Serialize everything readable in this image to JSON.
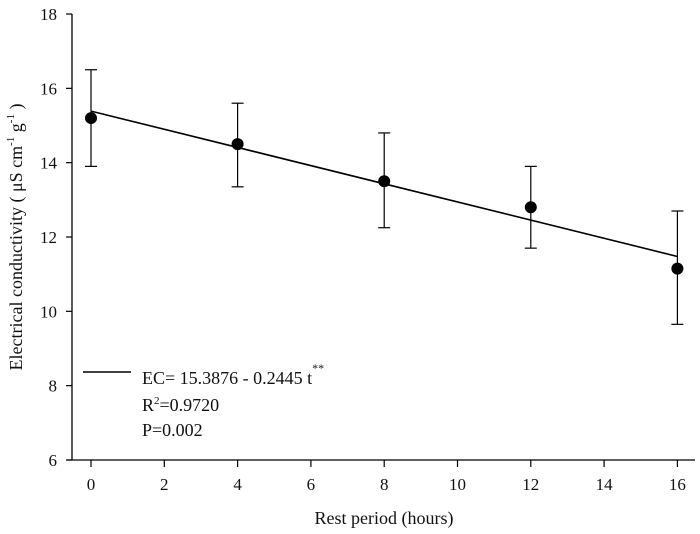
{
  "chart_data": {
    "type": "scatter",
    "xlabel": "Rest period (hours)",
    "ylabel_main": "Electrical conductivity ( μS cm",
    "ylabel_sup1": "-1",
    "ylabel_mid": " g",
    "ylabel_sup2": "-1",
    "ylabel_end": " )",
    "xlim": [
      -0.5,
      16.5
    ],
    "ylim": [
      6,
      18
    ],
    "xticks": [
      0,
      2,
      4,
      6,
      8,
      10,
      12,
      14,
      16
    ],
    "yticks": [
      6,
      8,
      10,
      12,
      14,
      16,
      18
    ],
    "grid": false,
    "x": [
      0,
      4,
      8,
      12,
      16
    ],
    "y": [
      15.2,
      14.5,
      13.5,
      12.8,
      11.15
    ],
    "error_low": [
      13.9,
      13.35,
      12.25,
      11.7,
      9.65
    ],
    "error_high": [
      16.5,
      15.6,
      14.8,
      13.9,
      12.7
    ],
    "regression": {
      "intercept": 15.3876,
      "slope": -0.2445,
      "x_range": [
        0,
        16
      ]
    },
    "legend": {
      "placement": "bottom-left",
      "equation": "EC= 15.3876 - 0.2445 t",
      "equation_sup": "**",
      "r2_prefix": "R",
      "r2_sup": "2",
      "r2_value": "=0.9720",
      "p_value": "P=0.002"
    },
    "colors": {
      "marker": "#000000",
      "line": "#000000"
    }
  }
}
